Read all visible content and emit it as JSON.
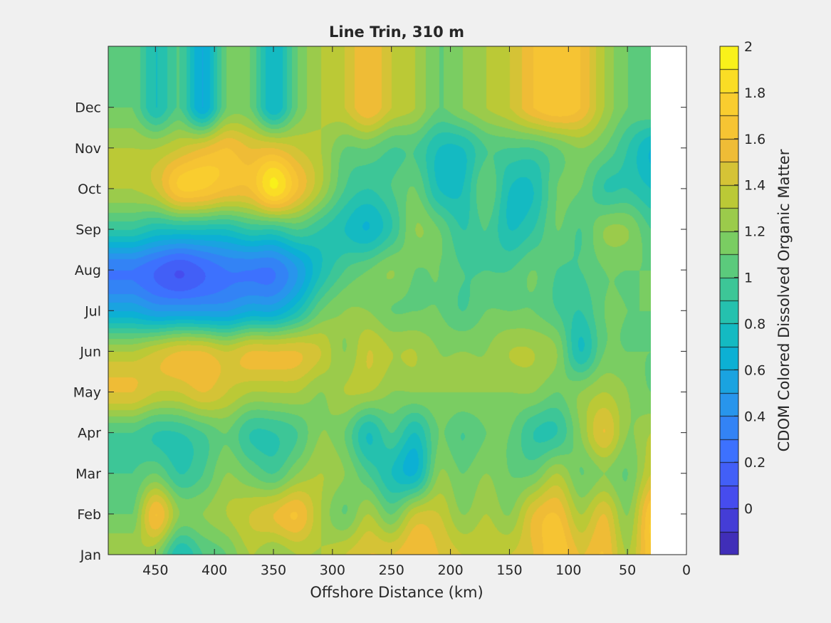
{
  "chart_data": {
    "type": "heatmap",
    "subtype": "filled-contour",
    "title": "Line Trin, 310 m",
    "xlabel": "Offshore Distance (km)",
    "ylabel": "",
    "x_direction": "reversed",
    "xlim": [
      0,
      490
    ],
    "x_ticks": [
      450,
      400,
      350,
      300,
      250,
      200,
      150,
      100,
      50,
      0
    ],
    "y_categories": [
      "Jan",
      "Feb",
      "Mar",
      "Apr",
      "May",
      "Jun",
      "Jul",
      "Aug",
      "Sep",
      "Oct",
      "Nov",
      "Dec"
    ],
    "colorbar": {
      "label": "CDOM Colored Dissolved Organic Matter",
      "clim": [
        -0.2,
        2.0
      ],
      "ticks": [
        0,
        0.2,
        0.4,
        0.6,
        0.8,
        1,
        1.2,
        1.4,
        1.6,
        1.8,
        2
      ],
      "tick_labels": [
        "0",
        "0.2",
        "0.4",
        "0.6",
        "0.8",
        "1",
        "1.2",
        "1.4",
        "1.6",
        "1.8",
        "2"
      ],
      "levels": 22,
      "colormap": "parula"
    },
    "x": [
      470,
      450,
      430,
      410,
      390,
      370,
      350,
      330,
      310,
      290,
      270,
      250,
      230,
      210,
      190,
      170,
      150,
      130,
      110,
      90,
      70,
      50,
      30
    ],
    "values": [
      [
        1.3,
        1.2,
        0.8,
        1.0,
        1.1,
        1.3,
        1.2,
        1.3,
        1.3,
        1.4,
        1.5,
        1.5,
        1.6,
        1.5,
        1.4,
        1.4,
        1.4,
        1.5,
        1.7,
        1.5,
        1.6,
        1.3,
        1.7
      ],
      [
        1.1,
        1.6,
        1.2,
        1.2,
        1.3,
        1.4,
        1.5,
        1.6,
        1.3,
        1.1,
        1.3,
        1.1,
        1.4,
        1.4,
        1.2,
        1.3,
        1.2,
        1.5,
        1.6,
        1.3,
        1.5,
        1.2,
        1.7
      ],
      [
        1.0,
        1.1,
        0.9,
        1.0,
        1.2,
        1.1,
        1.0,
        1.2,
        1.3,
        1.2,
        1.0,
        0.8,
        0.7,
        1.2,
        1.1,
        1.2,
        1.1,
        1.1,
        1.3,
        1.1,
        1.2,
        1.1,
        1.4
      ],
      [
        1.0,
        0.9,
        0.9,
        1.0,
        1.1,
        0.9,
        0.9,
        1.0,
        1.2,
        1.1,
        0.8,
        1.0,
        0.8,
        1.1,
        1.0,
        1.1,
        1.1,
        0.9,
        0.9,
        1.2,
        1.5,
        1.2,
        1.3
      ],
      [
        1.5,
        1.4,
        1.4,
        1.5,
        1.4,
        1.3,
        1.3,
        1.3,
        1.2,
        1.3,
        1.3,
        1.2,
        1.2,
        1.2,
        1.2,
        1.2,
        1.2,
        1.2,
        1.1,
        1.2,
        1.3,
        1.2,
        1.1
      ],
      [
        1.3,
        1.4,
        1.5,
        1.5,
        1.4,
        1.5,
        1.5,
        1.5,
        1.4,
        1.2,
        1.4,
        1.3,
        1.3,
        1.2,
        1.2,
        1.2,
        1.3,
        1.3,
        1.2,
        0.8,
        1.1,
        1.1,
        1.1
      ],
      [
        0.6,
        0.5,
        0.5,
        0.5,
        0.5,
        0.6,
        0.6,
        0.8,
        1.1,
        1.2,
        1.2,
        1.1,
        1.1,
        1.1,
        1.0,
        1.1,
        1.1,
        1.1,
        1.0,
        0.9,
        1.1,
        1.1,
        1.1
      ],
      [
        0.3,
        0.2,
        0.1,
        0.2,
        0.3,
        0.3,
        0.3,
        0.5,
        0.8,
        1.0,
        1.1,
        1.2,
        1.1,
        1.1,
        1.0,
        1.0,
        1.0,
        1.1,
        1.0,
        1.0,
        1.1,
        1.1,
        1.1
      ],
      [
        0.9,
        0.8,
        0.8,
        0.8,
        0.8,
        0.9,
        0.9,
        1.0,
        0.9,
        0.8,
        0.7,
        0.9,
        1.2,
        1.1,
        0.9,
        1.0,
        0.8,
        0.9,
        1.1,
        1.0,
        1.2,
        1.2,
        1.0
      ],
      [
        1.3,
        1.4,
        1.7,
        1.7,
        1.6,
        1.6,
        1.9,
        1.6,
        1.3,
        1.0,
        0.9,
        1.0,
        1.1,
        0.8,
        0.8,
        1.1,
        0.8,
        0.8,
        1.1,
        1.1,
        0.9,
        0.9,
        0.8
      ],
      [
        1.3,
        1.3,
        1.4,
        1.5,
        1.6,
        1.5,
        1.5,
        1.4,
        1.3,
        1.1,
        1.1,
        1.0,
        1.0,
        0.8,
        0.8,
        1.0,
        1.0,
        1.0,
        1.1,
        1.2,
        1.1,
        0.9,
        0.7
      ],
      [
        1.1,
        0.8,
        1.0,
        0.6,
        1.1,
        1.1,
        0.7,
        1.1,
        1.3,
        1.4,
        1.6,
        1.4,
        1.3,
        1.1,
        1.2,
        1.3,
        1.4,
        1.6,
        1.7,
        1.6,
        1.3,
        1.1,
        1.1
      ]
    ]
  }
}
